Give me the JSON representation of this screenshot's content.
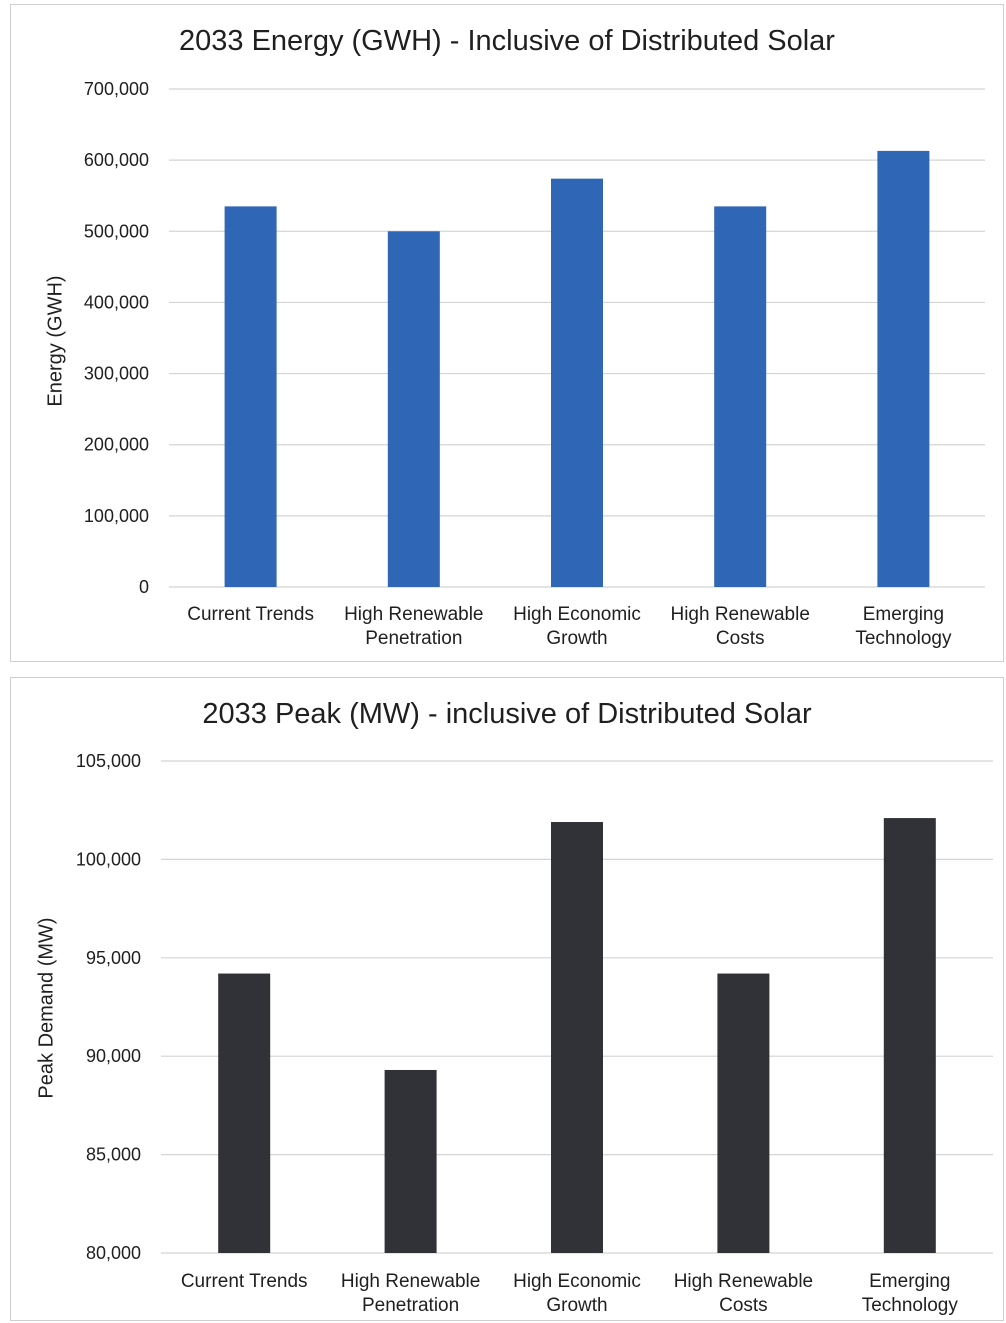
{
  "colors": {
    "energy_bar": "#2f66b5",
    "peak_bar": "#303238",
    "gridline": "#d4d4d4",
    "text": "#1f1f1f"
  },
  "chart_data": [
    {
      "type": "bar",
      "title": "2033 Energy (GWH) - Inclusive of Distributed Solar",
      "xlabel": "",
      "ylabel": "Energy (GWH)",
      "categories": [
        [
          "Current Trends"
        ],
        [
          "High Renewable",
          "Penetration"
        ],
        [
          "High Economic",
          "Growth"
        ],
        [
          "High Renewable",
          "Costs"
        ],
        [
          "Emerging",
          "Technology"
        ]
      ],
      "values": [
        535000,
        500000,
        574000,
        535000,
        613000
      ],
      "ylim": [
        0,
        700000
      ],
      "yticks": [
        "0",
        "100,000",
        "200,000",
        "300,000",
        "400,000",
        "500,000",
        "600,000",
        "700,000"
      ],
      "grid": true,
      "legend": "none"
    },
    {
      "type": "bar",
      "title": "2033 Peak (MW) - inclusive of Distributed Solar",
      "xlabel": "",
      "ylabel": "Peak Demand (MW)",
      "categories": [
        [
          "Current Trends"
        ],
        [
          "High Renewable",
          "Penetration"
        ],
        [
          "High Economic",
          "Growth"
        ],
        [
          "High Renewable",
          "Costs"
        ],
        [
          "Emerging",
          "Technology"
        ]
      ],
      "values": [
        94200,
        89300,
        101900,
        94200,
        102100
      ],
      "ylim": [
        80000,
        105000
      ],
      "yticks": [
        "80,000",
        "85,000",
        "90,000",
        "95,000",
        "100,000",
        "105,000"
      ],
      "grid": true,
      "legend": "none"
    }
  ]
}
